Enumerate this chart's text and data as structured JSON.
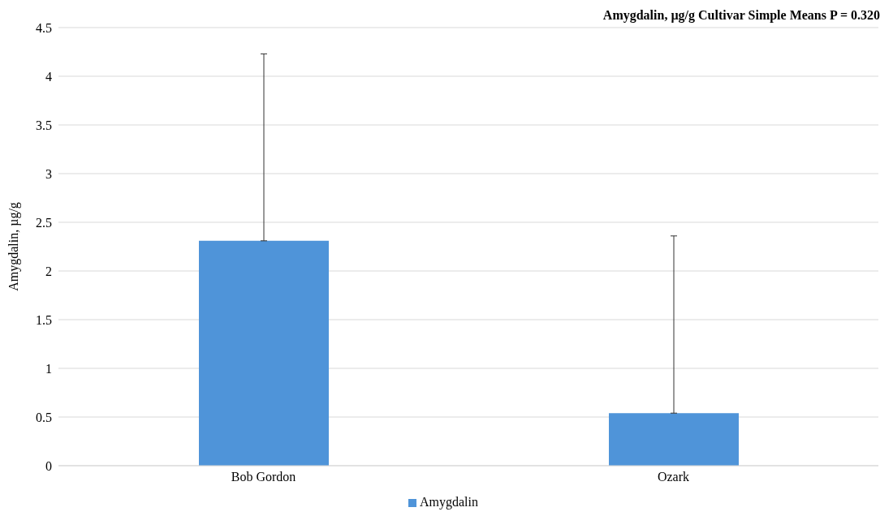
{
  "chart_data": {
    "type": "bar",
    "title": "Amygdalin, µg/g Cultivar Simple Means P = 0.320",
    "ylabel": "Amygdalin, µg/g",
    "categories": [
      "Bob Gordon",
      "Ozark"
    ],
    "series": [
      {
        "name": "Amygdalin",
        "color": "#4f94d9",
        "values": [
          2.31,
          0.54
        ],
        "errors": [
          [
            2.31,
            4.23
          ],
          [
            0.54,
            2.36
          ]
        ]
      }
    ],
    "ylim": [
      0,
      4.5
    ],
    "yticks": [
      0,
      0.5,
      1,
      1.5,
      2,
      2.5,
      3,
      3.5,
      4,
      4.5
    ],
    "grid": "y",
    "legend": "bottom"
  }
}
